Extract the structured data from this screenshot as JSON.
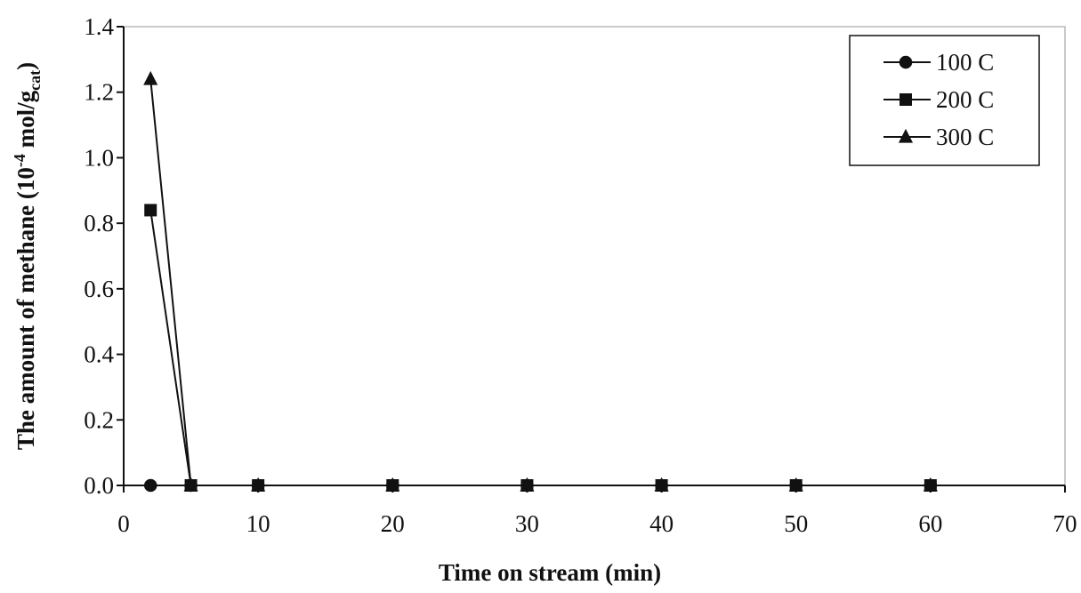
{
  "chart_data": {
    "type": "line",
    "xlabel": "Time on stream (min)",
    "ylabel": {
      "main": "The amount of methane (10",
      "exponent": "-4",
      "unit": " mol/g",
      "unit_sub": "cat",
      "close": ")"
    },
    "xlim": [
      0,
      70
    ],
    "ylim": [
      0.0,
      1.4
    ],
    "xticks": [
      0,
      10,
      20,
      30,
      40,
      50,
      60,
      70
    ],
    "xtick_labels": [
      "0",
      "10",
      "20",
      "30",
      "40",
      "50",
      "60",
      "70"
    ],
    "yticks": [
      0.0,
      0.2,
      0.4,
      0.6,
      0.8,
      1.0,
      1.2,
      1.4
    ],
    "ytick_labels": [
      "0.0",
      "0.2",
      "0.4",
      "0.6",
      "0.8",
      "1.0",
      "1.2",
      "1.4"
    ],
    "grid": false,
    "legend_position": "top-right",
    "series": [
      {
        "name": "100 C",
        "marker": "circle",
        "color": "#111111",
        "x": [
          2,
          5,
          10,
          20,
          30,
          40,
          50,
          60
        ],
        "y": [
          0.0,
          0.0,
          0.0,
          0.0,
          0.0,
          0.0,
          0.0,
          0.0
        ]
      },
      {
        "name": "200 C",
        "marker": "square",
        "color": "#111111",
        "x": [
          2,
          5,
          10,
          20,
          30,
          40,
          50,
          60
        ],
        "y": [
          0.84,
          0.0,
          0.0,
          0.0,
          0.0,
          0.0,
          0.0,
          0.0
        ]
      },
      {
        "name": "300 C",
        "marker": "triangle",
        "color": "#111111",
        "x": [
          2,
          5,
          10,
          20,
          30,
          40,
          50,
          60
        ],
        "y": [
          1.24,
          0.0,
          0.0,
          0.0,
          0.0,
          0.0,
          0.0,
          0.0
        ]
      }
    ]
  }
}
